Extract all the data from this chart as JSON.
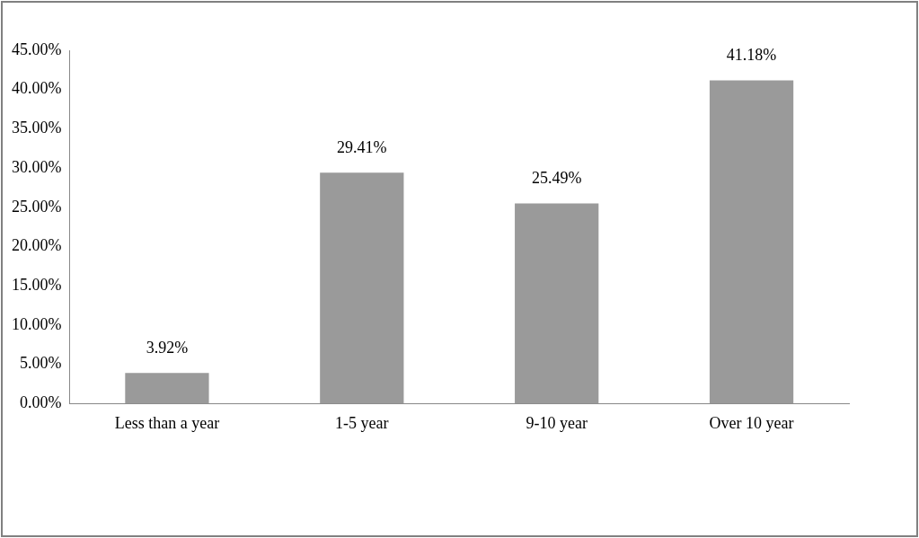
{
  "chart_data": {
    "type": "bar",
    "categories": [
      "Less than a year",
      "1-5 year",
      "9-10 year",
      "Over 10 year"
    ],
    "values": [
      3.92,
      29.41,
      25.49,
      41.18
    ],
    "value_labels": [
      "3.92%",
      "29.41%",
      "25.49%",
      "41.18%"
    ],
    "color": "#9a9a9a",
    "ylim": [
      0,
      45
    ],
    "yticks": [
      {
        "value": 0,
        "label": "0.00%"
      },
      {
        "value": 5,
        "label": "5.00%"
      },
      {
        "value": 10,
        "label": "10.00%"
      },
      {
        "value": 15,
        "label": "15.00%"
      },
      {
        "value": 20,
        "label": "20.00%"
      },
      {
        "value": 25,
        "label": "25.00%"
      },
      {
        "value": 30,
        "label": "30.00%"
      },
      {
        "value": 35,
        "label": "35.00%"
      },
      {
        "value": 40,
        "label": "40.00%"
      },
      {
        "value": 45,
        "label": "45.00%"
      }
    ]
  }
}
